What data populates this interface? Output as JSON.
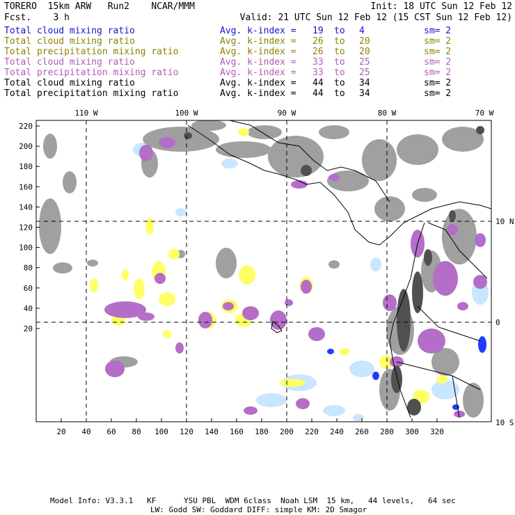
{
  "header": {
    "left_line1": "TORERO  15km ARW   Run2    NCAR/MMM",
    "left_line2": "Fcst.    3 h",
    "right_line1": "Init: 18 UTC Sun 12 Feb 12",
    "right_line2": "Valid: 21 UTC Sun 12 Feb 12 (15 CST Sun 12 Feb 12)"
  },
  "legend": [
    {
      "field": "Total cloud mixing ratio",
      "label": "Avg. k-index =",
      "k1": "19",
      "to": "to",
      "k2": "4",
      "sm": "sm= 2",
      "color": "#1414d2"
    },
    {
      "field": "Total cloud mixing ratio",
      "label": "Avg. k-index =",
      "k1": "26",
      "to": "to",
      "k2": "20",
      "sm": "sm= 2",
      "color": "#8c8200"
    },
    {
      "field": "Total precipitation mixing ratio",
      "label": "Avg. k-index =",
      "k1": "26",
      "to": "to",
      "k2": "20",
      "sm": "sm= 2",
      "color": "#8c8200"
    },
    {
      "field": "Total cloud mixing ratio",
      "label": "Avg. k-index =",
      "k1": "33",
      "to": "to",
      "k2": "25",
      "sm": "sm= 2",
      "color": "#b45ab4"
    },
    {
      "field": "Total precipitation mixing ratio",
      "label": "Avg. k-index =",
      "k1": "33",
      "to": "to",
      "k2": "25",
      "sm": "sm= 2",
      "color": "#b45ab4"
    },
    {
      "field": "Total cloud mixing ratio",
      "label": "Avg. k-index =",
      "k1": "44",
      "to": "to",
      "k2": "34",
      "sm": "sm= 2",
      "color": "#000000"
    },
    {
      "field": "Total precipitation mixing ratio",
      "label": "Avg. k-index =",
      "k1": "44",
      "to": "to",
      "k2": "34",
      "sm": "sm= 2",
      "color": "#000000"
    }
  ],
  "map": {
    "lon_labels": [
      "110 W",
      "100 W",
      "90 W",
      "80 W",
      "70 W"
    ],
    "lat_labels": [
      "10 N",
      "0",
      "10 S"
    ],
    "y_ticks": [
      "220",
      "200",
      "180",
      "160",
      "140",
      "120",
      "100",
      "80",
      "60",
      "40",
      "20"
    ],
    "x_ticks": [
      "20",
      "40",
      "60",
      "80",
      "100",
      "120",
      "140",
      "160",
      "180",
      "200",
      "220",
      "240",
      "260",
      "280",
      "300",
      "320"
    ],
    "colors": {
      "gray": "#a0a0a0",
      "dark": "#505050",
      "purple": "#b46ec8",
      "yellow": "#ffff66",
      "lightblue": "#c8e6ff",
      "blue": "#1e3cff"
    }
  },
  "footer": {
    "line1": "Model Info: V3.3.1   KF      YSU PBL  WDM 6class  Noah LSM  15 km,   44 levels,   64 sec",
    "line2": "LW: Godd SW: Goddard DIFF: simple KM: 2D Smagor"
  }
}
